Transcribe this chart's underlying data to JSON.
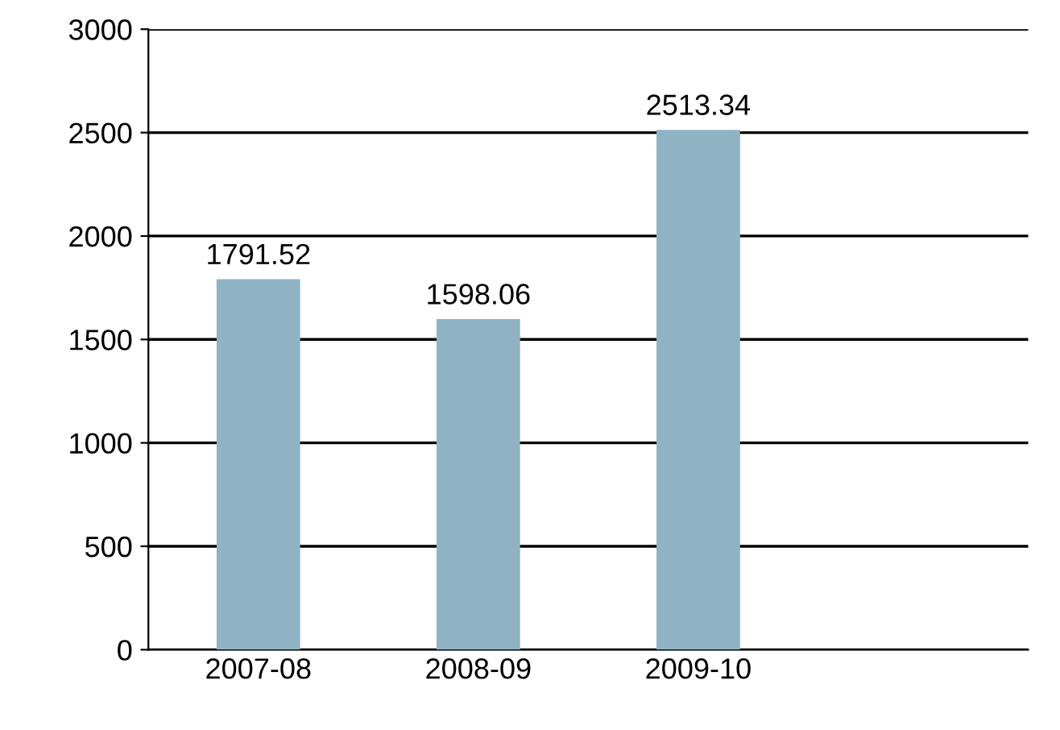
{
  "chart_data": {
    "type": "bar",
    "categories": [
      "2007-08",
      "2008-09",
      "2009-10",
      null
    ],
    "values": [
      1791.52,
      1598.06,
      2513.34,
      null
    ],
    "color": "#8fb3c4",
    "ylim": [
      0,
      3000
    ],
    "yticks": [
      0,
      500,
      1000,
      1500,
      2000,
      2500,
      3000
    ],
    "grid": "y",
    "data_labels": true
  }
}
